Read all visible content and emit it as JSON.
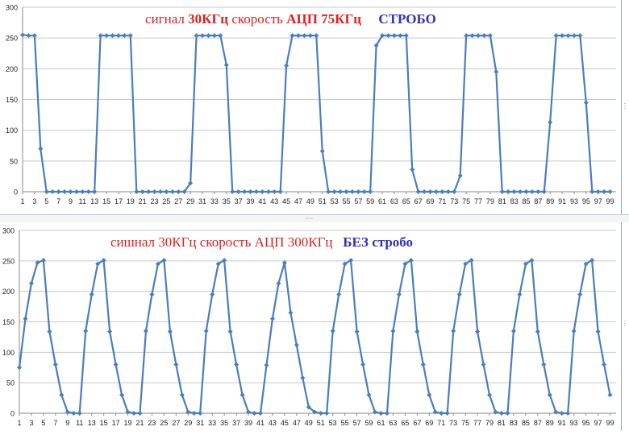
{
  "chart_data": [
    {
      "type": "line",
      "title_parts": [
        {
          "text": "сигнал ",
          "color": "#e02020",
          "bold": false
        },
        {
          "text": "30КГц",
          "color": "#e02020",
          "bold": true
        },
        {
          "text": " скорость ",
          "color": "#e02020",
          "bold": false
        },
        {
          "text": "АЦП 75КГц",
          "color": "#e02020",
          "bold": true
        },
        {
          "text": "     ",
          "color": "#e02020",
          "bold": false
        },
        {
          "text": "СТРОБО",
          "color": "#3030c0",
          "bold": true
        }
      ],
      "series_color": "#4a7ebb",
      "ylim": [
        0,
        300
      ],
      "yticks": [
        0,
        50,
        100,
        150,
        200,
        250,
        300
      ],
      "xlim": [
        1,
        100
      ],
      "xtick_labels": [
        "1",
        "3",
        "5",
        "7",
        "9",
        "11",
        "13",
        "15",
        "17",
        "19",
        "21",
        "23",
        "25",
        "27",
        "29",
        "31",
        "33",
        "35",
        "37",
        "39",
        "41",
        "43",
        "45",
        "47",
        "49",
        "51",
        "53",
        "55",
        "57",
        "59",
        "61",
        "63",
        "65",
        "67",
        "69",
        "71",
        "73",
        "75",
        "77",
        "79",
        "81",
        "83",
        "85",
        "87",
        "89",
        "91",
        "93",
        "95",
        "97",
        "99"
      ],
      "grid": true,
      "legend": "none",
      "values": [
        255,
        254,
        254,
        70,
        0,
        0,
        0,
        0,
        0,
        0,
        0,
        0,
        0,
        254,
        254,
        254,
        254,
        254,
        254,
        0,
        0,
        0,
        0,
        0,
        0,
        0,
        0,
        0,
        14,
        254,
        254,
        254,
        254,
        254,
        206,
        0,
        0,
        0,
        0,
        0,
        0,
        0,
        0,
        0,
        205,
        254,
        254,
        254,
        254,
        254,
        66,
        0,
        0,
        0,
        0,
        0,
        0,
        0,
        0,
        238,
        254,
        254,
        254,
        254,
        254,
        36,
        0,
        0,
        0,
        0,
        0,
        0,
        0,
        26,
        254,
        254,
        254,
        254,
        254,
        195,
        0,
        0,
        0,
        0,
        0,
        0,
        0,
        0,
        113,
        254,
        254,
        254,
        254,
        254,
        145,
        0,
        0,
        0,
        0
      ]
    },
    {
      "type": "line",
      "title_parts": [
        {
          "text": "сишнал 30КГц скорость АЦП 300КГц",
          "color": "#e02020",
          "bold": false
        },
        {
          "text": "   ",
          "color": "#e02020",
          "bold": false
        },
        {
          "text": "БЕЗ стробо",
          "color": "#3030c0",
          "bold": true
        }
      ],
      "series_color": "#4a7ebb",
      "ylim": [
        0,
        300
      ],
      "yticks": [
        0,
        50,
        100,
        150,
        200,
        250,
        300
      ],
      "xlim": [
        1,
        100
      ],
      "xtick_labels": [
        "1",
        "3",
        "5",
        "7",
        "9",
        "11",
        "13",
        "15",
        "17",
        "19",
        "21",
        "23",
        "25",
        "27",
        "29",
        "31",
        "33",
        "35",
        "37",
        "39",
        "41",
        "43",
        "45",
        "47",
        "49",
        "51",
        "53",
        "55",
        "57",
        "59",
        "61",
        "63",
        "65",
        "67",
        "69",
        "71",
        "73",
        "75",
        "77",
        "79",
        "81",
        "83",
        "85",
        "87",
        "89",
        "91",
        "93",
        "95",
        "97",
        "99"
      ],
      "grid": true,
      "legend": "none",
      "values": [
        75,
        155,
        213,
        247,
        251,
        134,
        80,
        30,
        2,
        0,
        0,
        135,
        195,
        245,
        251,
        134,
        80,
        30,
        2,
        0,
        0,
        135,
        195,
        245,
        251,
        134,
        80,
        30,
        2,
        0,
        0,
        135,
        195,
        245,
        251,
        134,
        80,
        30,
        2,
        0,
        0,
        79,
        155,
        213,
        247,
        165,
        112,
        58,
        10,
        2,
        0,
        0,
        135,
        195,
        245,
        251,
        134,
        80,
        30,
        2,
        0,
        0,
        135,
        195,
        245,
        251,
        134,
        80,
        30,
        2,
        0,
        0,
        135,
        195,
        245,
        251,
        134,
        80,
        30,
        2,
        0,
        0,
        135,
        195,
        245,
        251,
        134,
        80,
        30,
        2,
        0,
        0,
        135,
        195,
        245,
        251,
        134,
        80,
        30
      ]
    }
  ]
}
